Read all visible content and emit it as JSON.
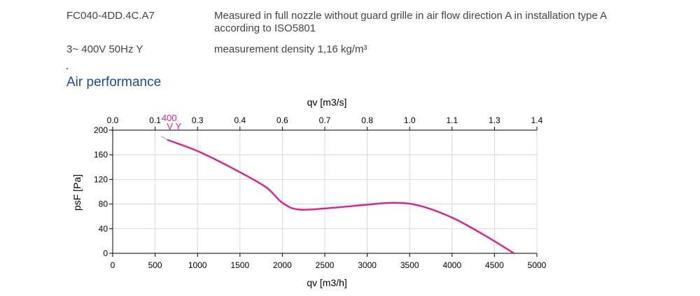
{
  "specs": {
    "model": "FC040-4DD.4C.A7",
    "conditions": "Measured in full nozzle without guard grille in air flow direction A in installation type A according to ISO5801",
    "supply": "3~ 400V 50Hz Y",
    "density": "measurement density 1,16 kg/m³"
  },
  "section_title": "Air performance",
  "chart_data": {
    "type": "line",
    "title": "",
    "xlabel": "qv [m3/h]",
    "ylabel": "psF [Pa]",
    "x2label": "qv [m3/s]",
    "xlim": [
      0,
      5000
    ],
    "ylim": [
      0,
      200
    ],
    "x_ticks": [
      0,
      500,
      1000,
      1500,
      2000,
      2500,
      3000,
      3500,
      4000,
      4500,
      5000
    ],
    "y_ticks": [
      0,
      40,
      80,
      120,
      160,
      200
    ],
    "x2_ticks": [
      "0.0",
      "0.1",
      "0.3",
      "0.4",
      "0.6",
      "0.7",
      "0.8",
      "1.0",
      "1.1",
      "1.3",
      "1.4"
    ],
    "grid": true,
    "curve_color": "#e0208c",
    "series": [
      {
        "name": "400 V Y",
        "label_line1": "400",
        "label_line2": "V Y",
        "x": [
          650,
          1000,
          1400,
          1800,
          2000,
          2200,
          2600,
          3000,
          3300,
          3600,
          4000,
          4400,
          4730
        ],
        "y": [
          184,
          166,
          139,
          108,
          82,
          71,
          74,
          79,
          82,
          78,
          58,
          28,
          0
        ]
      }
    ],
    "stub": {
      "x": [
        570,
        650
      ],
      "y": [
        190,
        184
      ]
    }
  }
}
